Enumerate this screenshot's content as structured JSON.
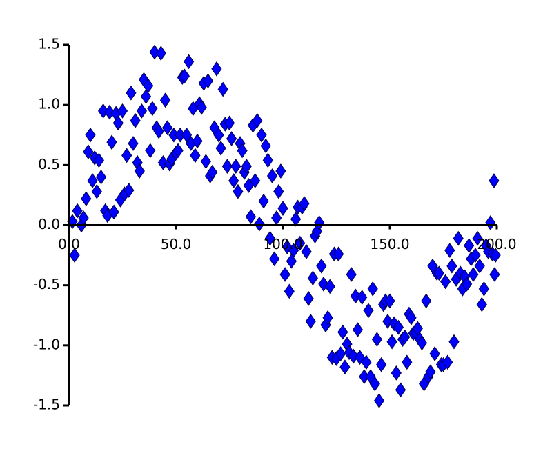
{
  "chart_data": {
    "type": "scatter",
    "color": "#0000ff",
    "xlim": [
      0,
      200
    ],
    "ylim": [
      -1.5,
      1.5
    ],
    "xticks": [
      {
        "value": 0,
        "label": "0.0"
      },
      {
        "value": 50,
        "label": "50.0"
      },
      {
        "value": 100,
        "label": "100.0"
      },
      {
        "value": 150,
        "label": "150.0"
      },
      {
        "value": 200,
        "label": "200.0"
      }
    ],
    "yticks": [
      1.5,
      {
        "value": 1,
        "label": "1.0"
      },
      0.5,
      {
        "value": 0,
        "label": "0.0"
      },
      -0.5,
      {
        "value": -1,
        "label": "-1.0"
      },
      -1.5
    ],
    "x": [
      1.6,
      2.6,
      3.9,
      5.8,
      6.8,
      8,
      9,
      10,
      11,
      12,
      13,
      14,
      15,
      16,
      17,
      18,
      19,
      20,
      21,
      22,
      23,
      24,
      25,
      26,
      27,
      28,
      29,
      30,
      31,
      32,
      33,
      34,
      35,
      36,
      37,
      38,
      39,
      40,
      41,
      42,
      43,
      44,
      45,
      46,
      47,
      48,
      49,
      50,
      51,
      52,
      53,
      54,
      55,
      56,
      57,
      58,
      59,
      60,
      61,
      62,
      63,
      64,
      65,
      66,
      67,
      68,
      69,
      70,
      71,
      72,
      73,
      74,
      75,
      76,
      77,
      78,
      79,
      80,
      81,
      82,
      83,
      84,
      85,
      86,
      87,
      88,
      89,
      90,
      91,
      92,
      93,
      94,
      95,
      96,
      97,
      98,
      99,
      100,
      101,
      102,
      103,
      104,
      105,
      106,
      107,
      108,
      109,
      110,
      111,
      112,
      113,
      114,
      115,
      116,
      117,
      118,
      119,
      120,
      121,
      122,
      123,
      124,
      125,
      126,
      127,
      128,
      129,
      130,
      131,
      132,
      133,
      134,
      135,
      136,
      137,
      138,
      139,
      140,
      141,
      142,
      143,
      144,
      145,
      146,
      147,
      148,
      149,
      150,
      151,
      152,
      153,
      154,
      155,
      156,
      157,
      158,
      159,
      160,
      161,
      162,
      163,
      164,
      165,
      166,
      167,
      168,
      169,
      170,
      171,
      172,
      173,
      174,
      175,
      176,
      177,
      178,
      179,
      180,
      181,
      182,
      183,
      184,
      185,
      186,
      187,
      188,
      189,
      190,
      191,
      192,
      193,
      194,
      195,
      196,
      197,
      198,
      199,
      198.7,
      199.4
    ],
    "values": [
      0.03,
      -0.25,
      0.12,
      0,
      0.06,
      0.22,
      0.61,
      0.75,
      0.37,
      0.56,
      0.28,
      0.54,
      0.4,
      0.95,
      0.12,
      0.08,
      0.94,
      0.69,
      0.11,
      0.93,
      0.85,
      0.21,
      0.95,
      0.26,
      0.58,
      0.29,
      1.1,
      0.68,
      0.87,
      0.52,
      0.45,
      0.95,
      1.21,
      1.07,
      1.16,
      0.62,
      0.97,
      1.44,
      0.81,
      0.78,
      1.43,
      0.52,
      1.04,
      0.81,
      0.51,
      0.55,
      0.75,
      0.6,
      0.62,
      0.75,
      1.23,
      1.24,
      0.75,
      1.36,
      0.68,
      0.97,
      0.58,
      0.7,
      1.01,
      0.98,
      1.18,
      0.53,
      1.2,
      0.41,
      0.44,
      0.81,
      1.3,
      0.75,
      0.64,
      1.13,
      0.84,
      0.49,
      0.85,
      0.72,
      0.37,
      0.49,
      0.28,
      0.68,
      0.62,
      0.44,
      0.49,
      0.33,
      0.07,
      0.83,
      0.37,
      0.87,
      0.01,
      0.75,
      0.2,
      0.66,
      0.54,
      -0.11,
      0.41,
      -0.28,
      0.06,
      0.28,
      0.45,
      0.14,
      -0.41,
      -0.18,
      -0.55,
      -0.3,
      -0.21,
      0.05,
      0.15,
      -0.15,
      0.15,
      0.18,
      -0.22,
      -0.61,
      -0.8,
      -0.44,
      -0.09,
      -0.05,
      0.02,
      -0.34,
      -0.49,
      -0.83,
      -0.77,
      -0.51,
      -1.1,
      -0.24,
      -1.11,
      -0.24,
      -1.07,
      -0.89,
      -1.18,
      -0.99,
      -1.06,
      -0.41,
      -1.09,
      -0.59,
      -0.87,
      -1.1,
      -0.6,
      -1.26,
      -1.14,
      -0.71,
      -1.26,
      -0.53,
      -1.32,
      -0.95,
      -1.46,
      -1.16,
      -0.66,
      -0.63,
      -0.8,
      -0.63,
      -0.97,
      -0.82,
      -1.23,
      -0.85,
      -1.37,
      -0.95,
      -0.93,
      -1.14,
      -0.74,
      -0.77,
      -0.9,
      -0.89,
      -0.86,
      -0.95,
      -0.98,
      -1.32,
      -0.63,
      -1.26,
      -1.22,
      -0.34,
      -1.07,
      -0.4,
      -0.4,
      -1.16,
      -1.16,
      -0.47,
      -1.14,
      -0.21,
      -0.34,
      -0.97,
      -0.45,
      -0.11,
      -0.4,
      -0.53,
      -0.43,
      -0.49,
      -0.17,
      -0.28,
      -0.41,
      -0.25,
      -0.11,
      -0.34,
      -0.66,
      -0.53,
      -0.17,
      -0.22,
      0.02,
      -0.24,
      -0.41,
      0.37,
      -0.25
    ]
  }
}
